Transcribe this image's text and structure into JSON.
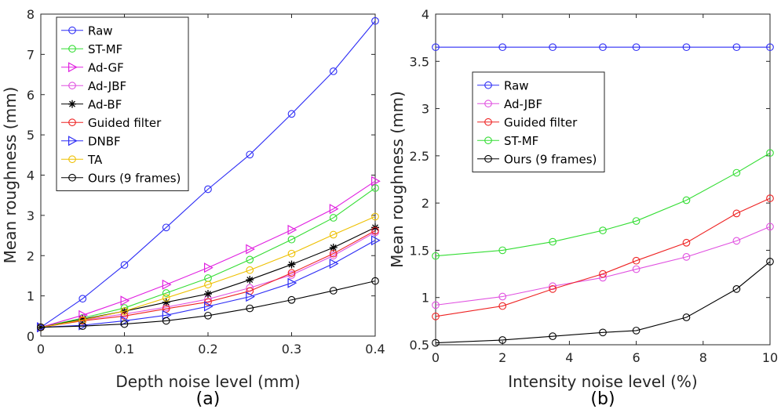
{
  "chart_data": [
    {
      "type": "line",
      "panel_label": "(a)",
      "xlabel": "Depth noise level (mm)",
      "ylabel": "Mean roughness (mm)",
      "xlim": [
        0,
        0.4
      ],
      "ylim": [
        0,
        8
      ],
      "xticks": [
        "0",
        "0.1",
        "0.2",
        "0.3",
        "0.4"
      ],
      "yticks": [
        "0",
        "1",
        "2",
        "3",
        "4",
        "5",
        "6",
        "7",
        "8"
      ],
      "legend_position": "top-left",
      "x": [
        0,
        0.05,
        0.1,
        0.15,
        0.2,
        0.25,
        0.3,
        0.35,
        0.4
      ],
      "series": [
        {
          "name": "Raw",
          "color": "#2d2df5",
          "marker": "circle",
          "values": [
            0.22,
            0.93,
            1.77,
            2.7,
            3.65,
            4.51,
            5.52,
            6.58,
            7.83
          ]
        },
        {
          "name": "ST-MF",
          "color": "#33dd33",
          "marker": "circle",
          "values": [
            0.22,
            0.45,
            0.7,
            1.07,
            1.44,
            1.9,
            2.4,
            2.94,
            3.68
          ]
        },
        {
          "name": "Ad-GF",
          "color": "#e020e0",
          "marker": "triangle-right",
          "values": [
            0.22,
            0.52,
            0.88,
            1.28,
            1.7,
            2.16,
            2.64,
            3.16,
            3.85
          ]
        },
        {
          "name": "Ad-JBF",
          "color": "#e050e0",
          "marker": "circle",
          "values": [
            0.22,
            0.4,
            0.55,
            0.72,
            0.92,
            1.2,
            1.52,
            2.0,
            2.58
          ]
        },
        {
          "name": "Ad-BF",
          "color": "#000000",
          "marker": "asterisk",
          "values": [
            0.22,
            0.42,
            0.62,
            0.84,
            1.05,
            1.4,
            1.78,
            2.2,
            2.7
          ]
        },
        {
          "name": "Guided filter",
          "color": "#ee2222",
          "marker": "circle",
          "values": [
            0.22,
            0.38,
            0.5,
            0.68,
            0.85,
            1.12,
            1.57,
            2.05,
            2.62
          ]
        },
        {
          "name": "DNBF",
          "color": "#2d2df5",
          "marker": "triangle-right",
          "values": [
            0.22,
            0.27,
            0.38,
            0.52,
            0.74,
            0.98,
            1.32,
            1.8,
            2.38
          ]
        },
        {
          "name": "TA",
          "color": "#eec000",
          "marker": "circle",
          "values": [
            0.22,
            0.4,
            0.62,
            0.95,
            1.28,
            1.64,
            2.05,
            2.52,
            2.97
          ]
        },
        {
          "name": "Ours (9 frames)",
          "color": "#000000",
          "marker": "circle",
          "values": [
            0.22,
            0.25,
            0.3,
            0.38,
            0.51,
            0.69,
            0.9,
            1.13,
            1.37
          ]
        }
      ]
    },
    {
      "type": "line",
      "panel_label": "(b)",
      "xlabel": "Intensity noise level (%)",
      "ylabel": "Mean roughness (mm)",
      "xlim": [
        0,
        10
      ],
      "ylim": [
        0.5,
        4
      ],
      "xticks": [
        "0",
        "2",
        "4",
        "6",
        "8",
        "10"
      ],
      "yticks": [
        "0.5",
        "1",
        "1.5",
        "2",
        "2.5",
        "3",
        "3.5",
        "4"
      ],
      "legend_position": "upper-left",
      "x": [
        0,
        2,
        3.5,
        5,
        6,
        7.5,
        9,
        10
      ],
      "series": [
        {
          "name": "Raw",
          "color": "#2d2df5",
          "marker": "circle",
          "values": [
            3.65,
            3.65,
            3.65,
            3.65,
            3.65,
            3.65,
            3.65,
            3.65
          ]
        },
        {
          "name": "Ad-JBF",
          "color": "#e050e0",
          "marker": "circle",
          "values": [
            0.92,
            1.01,
            1.12,
            1.21,
            1.3,
            1.43,
            1.6,
            1.75
          ]
        },
        {
          "name": "Guided filter",
          "color": "#ee2222",
          "marker": "circle",
          "values": [
            0.8,
            0.91,
            1.09,
            1.25,
            1.39,
            1.58,
            1.89,
            2.05
          ]
        },
        {
          "name": "ST-MF",
          "color": "#33dd33",
          "marker": "circle",
          "values": [
            1.44,
            1.5,
            1.59,
            1.71,
            1.81,
            2.03,
            2.32,
            2.53
          ]
        },
        {
          "name": "Ours (9 frames)",
          "color": "#000000",
          "marker": "circle",
          "values": [
            0.52,
            0.55,
            0.59,
            0.63,
            0.65,
            0.79,
            1.09,
            1.38
          ]
        }
      ]
    }
  ]
}
